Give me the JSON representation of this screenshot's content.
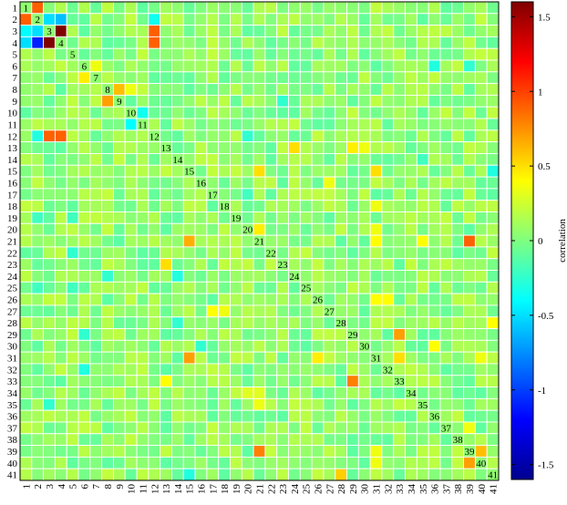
{
  "chart_data": {
    "type": "heatmap",
    "labels": [
      "1",
      "2",
      "3",
      "4",
      "5",
      "6",
      "7",
      "8",
      "9",
      "10",
      "11",
      "12",
      "13",
      "14",
      "15",
      "16",
      "17",
      "18",
      "19",
      "20",
      "21",
      "22",
      "23",
      "24",
      "25",
      "26",
      "27",
      "28",
      "29",
      "30",
      "31",
      "32",
      "33",
      "34",
      "35",
      "36",
      "37",
      "38",
      "39",
      "40",
      "41"
    ],
    "diagonal": "row labels printed along the diagonal",
    "colorbar": {
      "label": "correlation",
      "range": [
        -1.6,
        1.6
      ],
      "ticks": [
        -1.5,
        -1,
        -0.5,
        0,
        0.5,
        1,
        1.5
      ],
      "tick_labels": [
        "-1.5",
        "-1",
        "-0.5",
        "0",
        "0.5",
        "1",
        "1.5"
      ],
      "colormap": "jet"
    },
    "default_value": 0.05,
    "cells": [
      {
        "row": 1,
        "col": 2,
        "value": 0.9
      },
      {
        "row": 2,
        "col": 1,
        "value": 0.9
      },
      {
        "row": 2,
        "col": 3,
        "value": -0.5
      },
      {
        "row": 2,
        "col": 4,
        "value": -0.6
      },
      {
        "row": 2,
        "col": 12,
        "value": -0.35
      },
      {
        "row": 3,
        "col": 1,
        "value": -0.4
      },
      {
        "row": 3,
        "col": 2,
        "value": -0.5
      },
      {
        "row": 3,
        "col": 4,
        "value": 1.6
      },
      {
        "row": 3,
        "col": 12,
        "value": 0.9
      },
      {
        "row": 4,
        "col": 1,
        "value": -0.5
      },
      {
        "row": 4,
        "col": 2,
        "value": -1.1
      },
      {
        "row": 4,
        "col": 3,
        "value": 1.6
      },
      {
        "row": 4,
        "col": 12,
        "value": 0.9
      },
      {
        "row": 7,
        "col": 6,
        "value": 0.45
      },
      {
        "row": 6,
        "col": 7,
        "value": 0.35
      },
      {
        "row": 8,
        "col": 9,
        "value": 0.6
      },
      {
        "row": 9,
        "col": 8,
        "value": 0.7
      },
      {
        "row": 10,
        "col": 11,
        "value": -0.35
      },
      {
        "row": 11,
        "col": 10,
        "value": -0.4
      },
      {
        "row": 12,
        "col": 2,
        "value": -0.3
      },
      {
        "row": 12,
        "col": 3,
        "value": 0.9
      },
      {
        "row": 12,
        "col": 4,
        "value": 0.9
      },
      {
        "row": 13,
        "col": 24,
        "value": 0.5
      },
      {
        "row": 13,
        "col": 29,
        "value": 0.45
      },
      {
        "row": 13,
        "col": 30,
        "value": 0.35
      },
      {
        "row": 15,
        "col": 21,
        "value": 0.5
      },
      {
        "row": 15,
        "col": 31,
        "value": 0.5
      },
      {
        "row": 15,
        "col": 41,
        "value": -0.3
      },
      {
        "row": 21,
        "col": 15,
        "value": 0.65
      },
      {
        "row": 21,
        "col": 21,
        "value": 0.5
      },
      {
        "row": 20,
        "col": 21,
        "value": 0.45
      },
      {
        "row": 21,
        "col": 39,
        "value": 0.9
      },
      {
        "row": 21,
        "col": 31,
        "value": 0.4
      },
      {
        "row": 21,
        "col": 35,
        "value": 0.4
      },
      {
        "row": 23,
        "col": 13,
        "value": 0.5
      },
      {
        "row": 26,
        "col": 31,
        "value": 0.4
      },
      {
        "row": 26,
        "col": 32,
        "value": 0.4
      },
      {
        "row": 27,
        "col": 17,
        "value": 0.4
      },
      {
        "row": 27,
        "col": 18,
        "value": 0.35
      },
      {
        "row": 28,
        "col": 41,
        "value": 0.4
      },
      {
        "row": 29,
        "col": 33,
        "value": 0.7
      },
      {
        "row": 31,
        "col": 15,
        "value": 0.7
      },
      {
        "row": 31,
        "col": 26,
        "value": 0.45
      },
      {
        "row": 31,
        "col": 33,
        "value": 0.5
      },
      {
        "row": 33,
        "col": 29,
        "value": 0.8
      },
      {
        "row": 33,
        "col": 13,
        "value": 0.4
      },
      {
        "row": 39,
        "col": 21,
        "value": 0.8
      },
      {
        "row": 39,
        "col": 40,
        "value": 0.6
      },
      {
        "row": 40,
        "col": 39,
        "value": 0.7
      },
      {
        "row": 40,
        "col": 31,
        "value": 0.35
      },
      {
        "row": 41,
        "col": 28,
        "value": 0.55
      },
      {
        "row": 41,
        "col": 15,
        "value": -0.3
      },
      {
        "row": 6,
        "col": 36,
        "value": -0.3
      },
      {
        "row": 8,
        "col": 10,
        "value": 0.35
      },
      {
        "row": 18,
        "col": 31,
        "value": 0.35
      },
      {
        "row": 20,
        "col": 31,
        "value": 0.35
      },
      {
        "row": 30,
        "col": 36,
        "value": 0.4
      },
      {
        "row": 31,
        "col": 40,
        "value": 0.35
      },
      {
        "row": 39,
        "col": 31,
        "value": 0.35
      },
      {
        "row": 16,
        "col": 27,
        "value": 0.35
      },
      {
        "row": 35,
        "col": 21,
        "value": 0.35
      },
      {
        "row": 34,
        "col": 20,
        "value": 0.3
      },
      {
        "row": 34,
        "col": 21,
        "value": 0.3
      },
      {
        "row": 38,
        "col": 38,
        "value": 0.35
      },
      {
        "row": 37,
        "col": 39,
        "value": 0.35
      },
      {
        "row": 12,
        "col": 20,
        "value": -0.25
      },
      {
        "row": 22,
        "col": 5,
        "value": -0.25
      },
      {
        "row": 24,
        "col": 8,
        "value": -0.25
      },
      {
        "row": 35,
        "col": 3,
        "value": -0.25
      },
      {
        "row": 32,
        "col": 6,
        "value": -0.3
      },
      {
        "row": 29,
        "col": 6,
        "value": -0.25
      },
      {
        "row": 30,
        "col": 16,
        "value": -0.25
      },
      {
        "row": 28,
        "col": 14,
        "value": -0.25
      },
      {
        "row": 9,
        "col": 23,
        "value": -0.25
      },
      {
        "row": 6,
        "col": 39,
        "value": -0.25
      },
      {
        "row": 17,
        "col": 20,
        "value": -0.2
      },
      {
        "row": 14,
        "col": 35,
        "value": -0.2
      },
      {
        "row": 24,
        "col": 14,
        "value": -0.3
      },
      {
        "row": 25,
        "col": 2,
        "value": -0.2
      },
      {
        "row": 25,
        "col": 5,
        "value": -0.2
      },
      {
        "row": 19,
        "col": 5,
        "value": -0.2
      },
      {
        "row": 19,
        "col": 2,
        "value": -0.2
      }
    ]
  }
}
